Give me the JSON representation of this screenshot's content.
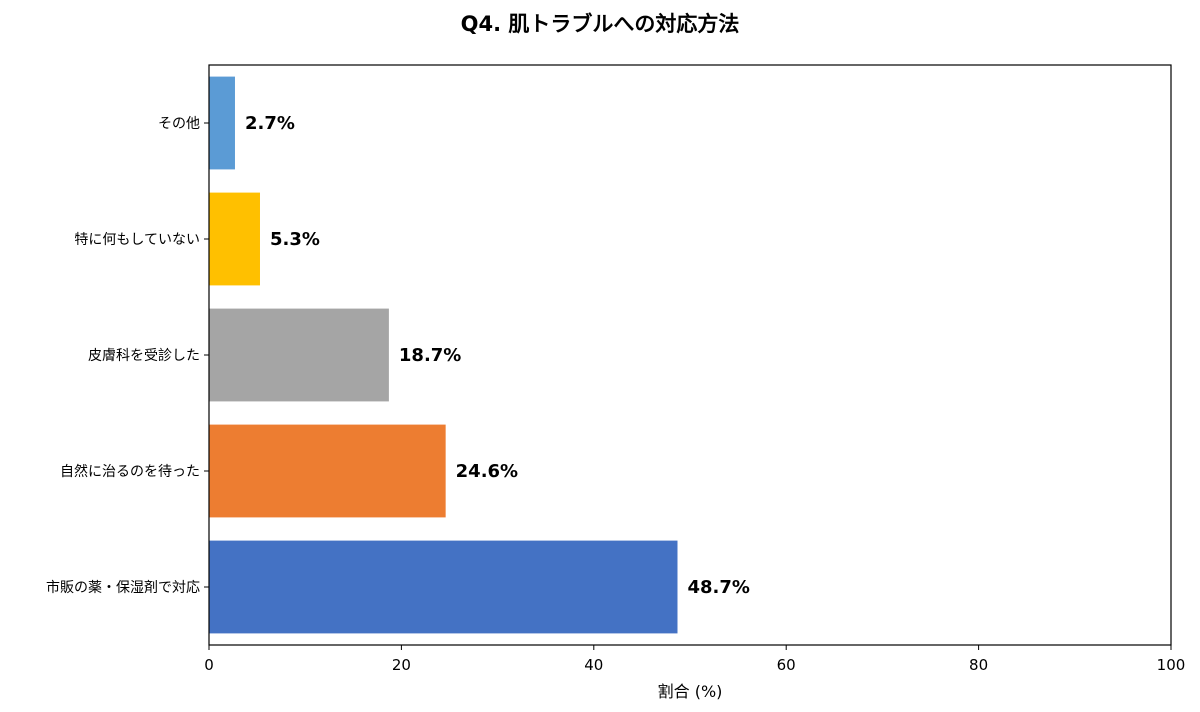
{
  "chart_data": {
    "type": "bar",
    "orientation": "horizontal",
    "title": "Q4. 肌トラブルへの対応方法",
    "xlabel": "割合 (%)",
    "ylabel": "",
    "xlim": [
      0,
      100
    ],
    "xticks": [
      "0",
      "20",
      "40",
      "60",
      "80",
      "100"
    ],
    "grid": false,
    "legend": "none",
    "categories": [
      "その他",
      "特に何もしていない",
      "皮膚科を受診した",
      "自然に治るのを待った",
      "市販の薬・保湿剤で対応"
    ],
    "values": [
      2.7,
      5.3,
      18.7,
      24.6,
      48.7
    ],
    "labels": [
      "2.7%",
      "5.3%",
      "18.7%",
      "24.6%",
      "48.7%"
    ],
    "colors": [
      "#5b9bd5",
      "#ffc000",
      "#a5a5a5",
      "#ed7d31",
      "#4472c4"
    ]
  }
}
